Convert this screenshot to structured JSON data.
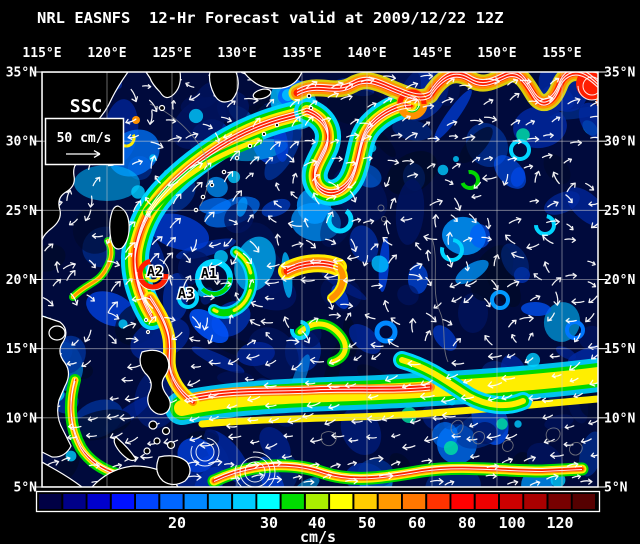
{
  "title": "NRL EASNFS  12-Hr Forecast valid at 2009/12/22 12Z",
  "map": {
    "variable_label": "SSC",
    "reference_arrow_label": "50 cm/s",
    "annotations": {
      "a1": "A1",
      "a2": "A2",
      "a3": "A3"
    },
    "axis": {
      "longitude_labels": [
        "115°E",
        "120°E",
        "125°E",
        "130°E",
        "135°E",
        "140°E",
        "145°E",
        "150°E",
        "155°E"
      ],
      "latitude_labels": [
        "35°N",
        "30°N",
        "25°N",
        "20°N",
        "15°N",
        "10°N",
        "5°N"
      ]
    }
  },
  "colorbar": {
    "unit_label": "cm/s",
    "ticks": [
      {
        "label": "20",
        "pos": 0.248
      },
      {
        "label": "30",
        "pos": 0.4125
      },
      {
        "label": "40",
        "pos": 0.498
      },
      {
        "label": "50",
        "pos": 0.5875
      },
      {
        "label": "60",
        "pos": 0.677
      },
      {
        "label": "80",
        "pos": 0.766
      },
      {
        "label": "100",
        "pos": 0.846
      },
      {
        "label": "120",
        "pos": 0.932
      }
    ],
    "colors": [
      "#000044",
      "#000088",
      "#0000cc",
      "#0011ff",
      "#0044ff",
      "#0066ff",
      "#0088ff",
      "#00aaff",
      "#00ccff",
      "#00ffff",
      "#00dd00",
      "#aaee00",
      "#ffff00",
      "#ffcc00",
      "#ff9900",
      "#ff7700",
      "#ff3300",
      "#ff0000",
      "#ee0000",
      "#cc0000",
      "#aa0000",
      "#770000",
      "#550000"
    ]
  },
  "colors": {
    "background": "#000000",
    "ocean_base": "#000a3c",
    "gridline": "#cccccc",
    "coastline": "#ffffff",
    "arrow": "#ffffff",
    "current_red": "#ff1e00",
    "current_orange": "#ff9100",
    "current_yellow": "#ffee00",
    "current_green": "#00d800",
    "current_cyan": "#00d5ff"
  }
}
